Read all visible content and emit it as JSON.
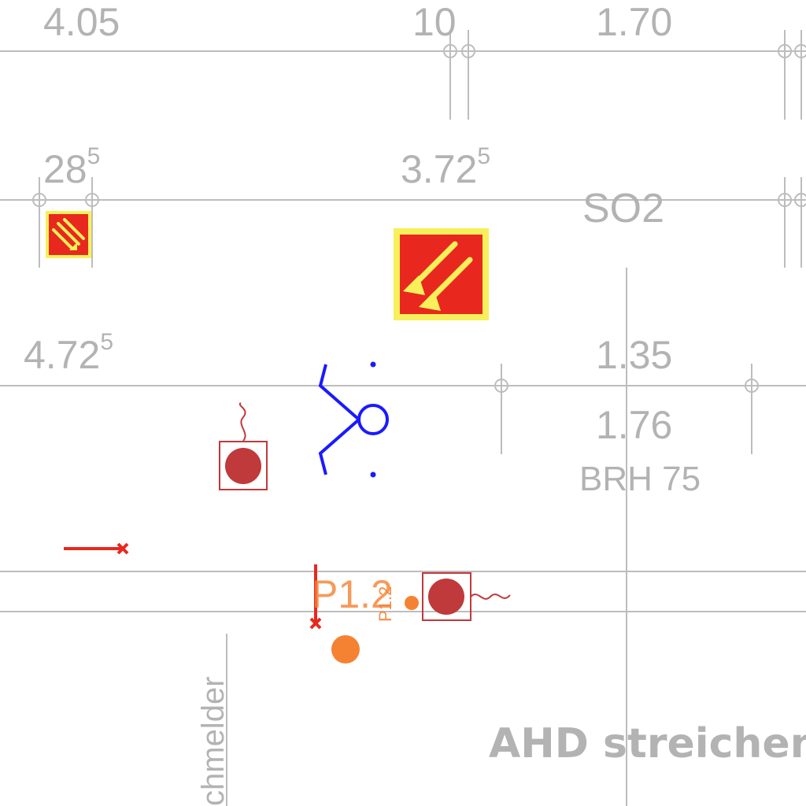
{
  "dimensions": {
    "d1": "4.05",
    "d2": "10",
    "d3": "1.70",
    "d4_main": "28",
    "d4_sup": "5",
    "d5_main": "3.72",
    "d5_sup": "5",
    "d6_main": "4.72",
    "d6_sup": "5",
    "d7": "1.35",
    "d8": "1.76"
  },
  "labels": {
    "room": "SO2",
    "window_sill": "BRH 75",
    "point_main": "P1.2",
    "point_small": "P1.2",
    "rotated_text": "chmelder",
    "note": "AHD streichen"
  },
  "colors": {
    "line": "#bdbdbd",
    "text": "#b3b3b3",
    "sign_red": "#e8281e",
    "sign_yellow": "#f7f05a",
    "detector": "#c0393b",
    "blue_symbol": "#1a1aff",
    "orange": "#f58232",
    "red_marker": "#e8281e"
  },
  "icons": {
    "sign_small": "fire-hose-sign-icon",
    "sign_large": "fire-hose-sign-icon",
    "detector_a": "smoke-detector-icon",
    "detector_b": "smoke-detector-icon",
    "blue": "light-fixture-symbol-icon"
  }
}
